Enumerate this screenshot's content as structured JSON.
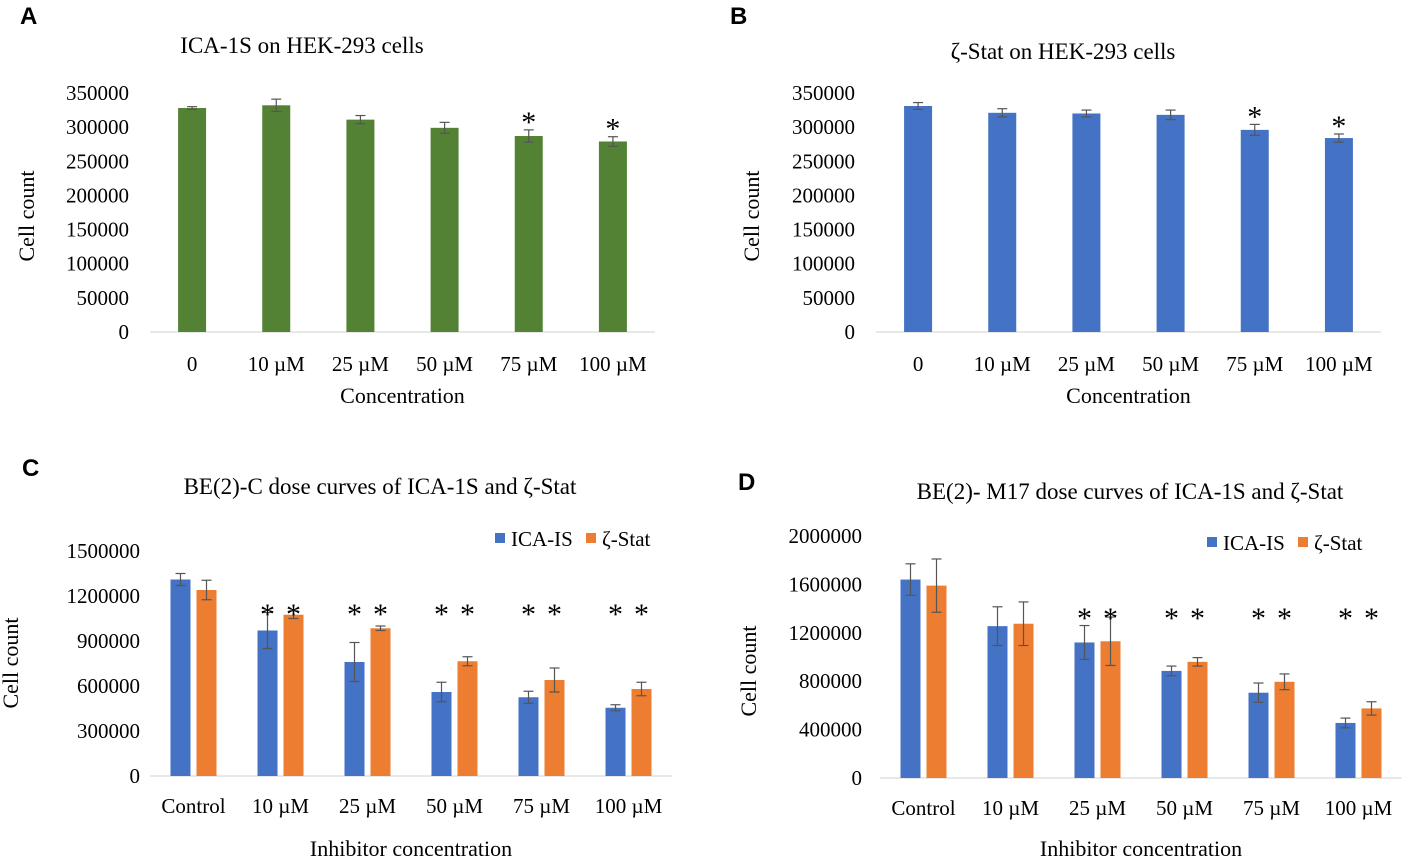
{
  "chart_data": [
    {
      "panel": "A",
      "type": "bar",
      "title": "ICA-1S on HEK-293 cells",
      "xlabel": "Concentration",
      "ylabel": "Cell count",
      "ylim": [
        0,
        350000
      ],
      "yticks": [
        0,
        50000,
        100000,
        150000,
        200000,
        250000,
        300000,
        350000
      ],
      "categories": [
        "0",
        "10 µM",
        "25 µM",
        "50 µM",
        "75 µM",
        "100 µM"
      ],
      "series": [
        {
          "name": "ICA-1S",
          "color": "#548235",
          "values": [
            328000,
            332000,
            311000,
            299000,
            287000,
            279000
          ],
          "errors": [
            2000,
            9000,
            6000,
            8000,
            9000,
            7000
          ],
          "significance": [
            "",
            "",
            "",
            "",
            "*",
            "*"
          ]
        }
      ],
      "legend": null
    },
    {
      "panel": "B",
      "type": "bar",
      "title": "ζ-Stat on HEK-293 cells",
      "xlabel": "Concentration",
      "ylabel": "Cell count",
      "ylim": [
        0,
        350000
      ],
      "yticks": [
        0,
        50000,
        100000,
        150000,
        200000,
        250000,
        300000,
        350000
      ],
      "categories": [
        "0",
        "10 µM",
        "25 µM",
        "50 µM",
        "75 µM",
        "100 µM"
      ],
      "series": [
        {
          "name": "ζ-Stat",
          "color": "#4472C4",
          "values": [
            331000,
            321000,
            320000,
            318000,
            296000,
            284000
          ],
          "errors": [
            5000,
            6000,
            5000,
            7000,
            8000,
            6000
          ],
          "significance": [
            "",
            "",
            "",
            "",
            "*",
            "*"
          ]
        }
      ],
      "legend": null
    },
    {
      "panel": "C",
      "type": "bar",
      "title": "BE(2)-C dose curves of ICA-1S and ζ-Stat",
      "xlabel": "Inhibitor concentration",
      "ylabel": "Cell count",
      "ylim": [
        0,
        1500000
      ],
      "yticks": [
        0,
        300000,
        600000,
        900000,
        1200000,
        1500000
      ],
      "categories": [
        "Control",
        "10 µM",
        "25 µM",
        "50 µM",
        "75 µM",
        "100 µM"
      ],
      "series": [
        {
          "name": "ICA-IS",
          "color": "#4472C4",
          "values": [
            1310000,
            970000,
            760000,
            560000,
            525000,
            455000
          ],
          "errors": [
            40000,
            120000,
            130000,
            65000,
            40000,
            20000
          ],
          "significance": [
            "",
            "*",
            "*",
            "*",
            "*",
            "*"
          ]
        },
        {
          "name": "ζ-Stat",
          "color": "#ED7D31",
          "values": [
            1240000,
            1075000,
            985000,
            765000,
            640000,
            580000
          ],
          "errors": [
            65000,
            25000,
            15000,
            30000,
            80000,
            45000
          ],
          "significance": [
            "",
            "*",
            "*",
            "*",
            "*",
            "*"
          ]
        }
      ],
      "legend": "top-right"
    },
    {
      "panel": "D",
      "type": "bar",
      "title": "BE(2)- M17 dose curves of ICA-1S and ζ-Stat",
      "xlabel": "Inhibitor concentration",
      "ylabel": "Cell count",
      "ylim": [
        0,
        2000000
      ],
      "yticks": [
        0,
        400000,
        800000,
        1200000,
        1600000,
        2000000
      ],
      "categories": [
        "Control",
        "10 µM",
        "25 µM",
        "50 µM",
        "75 µM",
        "100 µM"
      ],
      "series": [
        {
          "name": "ICA-IS",
          "color": "#4472C4",
          "values": [
            1640000,
            1255000,
            1120000,
            885000,
            705000,
            455000
          ],
          "errors": [
            130000,
            160000,
            140000,
            40000,
            80000,
            40000
          ],
          "significance": [
            "",
            "",
            "*",
            "*",
            "*",
            "*"
          ]
        },
        {
          "name": "ζ-Stat",
          "color": "#ED7D31",
          "values": [
            1590000,
            1275000,
            1130000,
            960000,
            795000,
            575000
          ],
          "errors": [
            220000,
            180000,
            200000,
            35000,
            65000,
            55000
          ],
          "significance": [
            "",
            "",
            "*",
            "*",
            "*",
            "*"
          ]
        }
      ],
      "legend": "top-right"
    }
  ]
}
